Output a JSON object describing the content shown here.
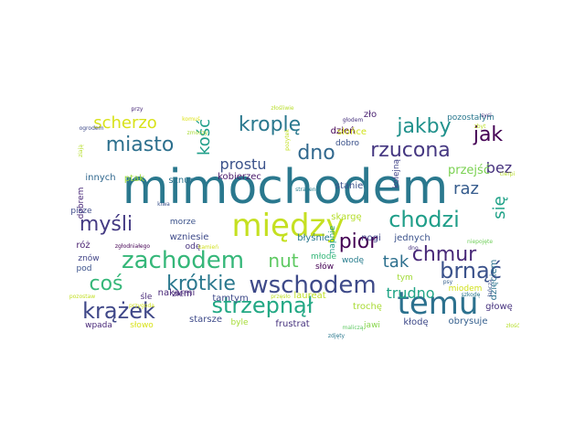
{
  "word_cloud": {
    "words": [
      {
        "text": "mimochodem",
        "color": "#2a788e"
      },
      {
        "text": "między",
        "color": "#c5e021"
      },
      {
        "text": "temu",
        "color": "#2c718e"
      },
      {
        "text": "zachodem",
        "color": "#35b779"
      },
      {
        "text": "wschodem",
        "color": "#3e4a89"
      },
      {
        "text": "strzepnął",
        "color": "#22a884"
      },
      {
        "text": "krążek",
        "color": "#3f4788"
      },
      {
        "text": "chodzi",
        "color": "#1f9e89"
      },
      {
        "text": "brnąć",
        "color": "#3b528b"
      },
      {
        "text": "krótkie",
        "color": "#2a788e"
      },
      {
        "text": "miasto",
        "color": "#2d708e"
      },
      {
        "text": "myśli",
        "color": "#443a83"
      },
      {
        "text": "kroplę",
        "color": "#2a788e"
      },
      {
        "text": "jakby",
        "color": "#21918c"
      },
      {
        "text": "rzucona",
        "color": "#453781"
      },
      {
        "text": "coś",
        "color": "#35b779"
      },
      {
        "text": "pior",
        "color": "#440154"
      },
      {
        "text": "chmur",
        "color": "#482878"
      },
      {
        "text": "nut",
        "color": "#5ec962"
      },
      {
        "text": "dno",
        "color": "#31688e"
      },
      {
        "text": "jak",
        "color": "#440154"
      },
      {
        "text": "trudno",
        "color": "#20a486"
      },
      {
        "text": "scherzo",
        "color": "#d8e219"
      },
      {
        "text": "kość",
        "color": "#1f9e89"
      },
      {
        "text": "raz",
        "color": "#365c8d"
      },
      {
        "text": "się",
        "color": "#1fa187"
      },
      {
        "text": "tak",
        "color": "#2d708e"
      },
      {
        "text": "prostu",
        "color": "#3b528b"
      },
      {
        "text": "bez",
        "color": "#46327e"
      },
      {
        "text": "przejść",
        "color": "#7ad151"
      },
      {
        "text": "laureat",
        "color": "#bddf26"
      },
      {
        "text": "kobierzec",
        "color": "#48186a"
      },
      {
        "text": "innych",
        "color": "#31688e"
      },
      {
        "text": "ptak",
        "color": "#a0da39"
      },
      {
        "text": "sznur",
        "color": "#2c728e"
      },
      {
        "text": "dzień",
        "color": "#440154"
      },
      {
        "text": "zło",
        "color": "#481f70"
      },
      {
        "text": "dobro",
        "color": "#3b528b"
      },
      {
        "text": "słońce",
        "color": "#d2e21b"
      },
      {
        "text": "stanie",
        "color": "#3b528b"
      },
      {
        "text": "kolejną",
        "color": "#414487"
      },
      {
        "text": "dobrem",
        "color": "#482878"
      },
      {
        "text": "wzniesie",
        "color": "#3e4a89"
      },
      {
        "text": "błyśnie",
        "color": "#2a788e"
      },
      {
        "text": "skargę",
        "color": "#b5de2b"
      },
      {
        "text": "morze",
        "color": "#3b528b"
      },
      {
        "text": "tamtym",
        "color": "#3e4a89"
      },
      {
        "text": "nakarmi",
        "color": "#482878"
      },
      {
        "text": "odę",
        "color": "#46327e"
      },
      {
        "text": "nogi",
        "color": "#414487"
      },
      {
        "text": "jednych",
        "color": "#3b528b"
      },
      {
        "text": "młode",
        "color": "#35b779"
      },
      {
        "text": "wodę",
        "color": "#287d8e"
      },
      {
        "text": "napnie",
        "color": "#1f9e89"
      },
      {
        "text": "dzięciem",
        "color": "#2c728e"
      },
      {
        "text": "róż",
        "color": "#481f70"
      },
      {
        "text": "znów",
        "color": "#414487"
      },
      {
        "text": "pod",
        "color": "#3b528b"
      },
      {
        "text": "złem",
        "color": "#482878"
      },
      {
        "text": "trochę",
        "color": "#a8db34"
      },
      {
        "text": "miodem",
        "color": "#d0e11c"
      },
      {
        "text": "głowę",
        "color": "#46327e"
      },
      {
        "text": "starsze",
        "color": "#3e4a89"
      },
      {
        "text": "frustrat",
        "color": "#46327e"
      },
      {
        "text": "kłodę",
        "color": "#3e4a89"
      },
      {
        "text": "obrysuje",
        "color": "#355f8d"
      },
      {
        "text": "wpada",
        "color": "#482878"
      },
      {
        "text": "słowo",
        "color": "#d8e219"
      },
      {
        "text": "byle",
        "color": "#a5db36"
      },
      {
        "text": "jawi",
        "color": "#86d549"
      },
      {
        "text": "pisze",
        "color": "#3e4a89"
      },
      {
        "text": "pozostałym",
        "color": "#2a788e"
      },
      {
        "text": "tym",
        "color": "#a2da37"
      },
      {
        "text": "słów",
        "color": "#440154"
      },
      {
        "text": "śle",
        "color": "#482878"
      },
      {
        "text": "złośliwie",
        "color": "#b8de29"
      },
      {
        "text": "komuś",
        "color": "#dde318"
      },
      {
        "text": "przy",
        "color": "#482878"
      },
      {
        "text": "ogrodem",
        "color": "#3e4a89"
      },
      {
        "text": "głodem",
        "color": "#46327e"
      },
      {
        "text": "syci",
        "color": "#46327e"
      },
      {
        "text": "zbyt",
        "color": "#bddf26"
      },
      {
        "text": "ziają",
        "color": "#b5de2b"
      },
      {
        "text": "pozytek",
        "color": "#c2df23"
      },
      {
        "text": "stracenie",
        "color": "#287d8e"
      },
      {
        "text": "cierpi",
        "color": "#b8de29"
      },
      {
        "text": "kiwa",
        "color": "#3b528b"
      },
      {
        "text": "zgłodniałego",
        "color": "#440154"
      },
      {
        "text": "kamień",
        "color": "#d0e11c"
      },
      {
        "text": "niepojęte",
        "color": "#6ece58"
      },
      {
        "text": "psy",
        "color": "#355f8d"
      },
      {
        "text": "łańczą",
        "color": "#3b528b"
      },
      {
        "text": "szkodę",
        "color": "#2a788e"
      },
      {
        "text": "złość",
        "color": "#b5de2b"
      },
      {
        "text": "pozostaw",
        "color": "#c2df23"
      },
      {
        "text": "przygoda",
        "color": "#d0e11c"
      },
      {
        "text": "przęsło",
        "color": "#bddf26"
      },
      {
        "text": "zdjęty",
        "color": "#2a788e"
      },
      {
        "text": "maliczą",
        "color": "#5ec962"
      },
      {
        "text": "zmoczy",
        "color": "#a8db34"
      },
      {
        "text": "dno",
        "color": "#46327e"
      }
    ]
  }
}
